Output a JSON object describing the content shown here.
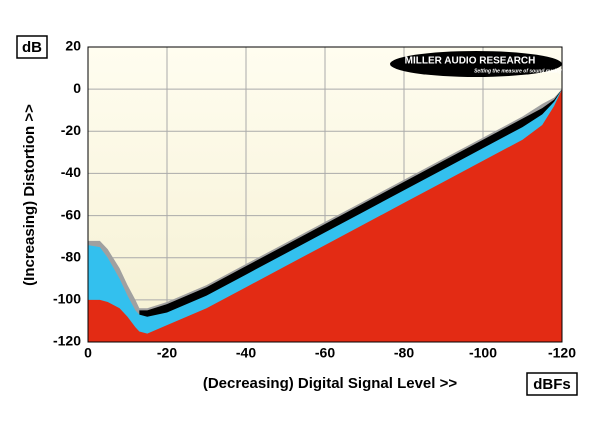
{
  "chart_data": {
    "type": "area",
    "y_unit": "dB",
    "x_unit": "dBFs",
    "y_axis_label": "(Increasing) Distortion >>",
    "x_axis_label": "(Decreasing) Digital Signal Level >>",
    "logo": "MILLER AUDIO RESEARCH",
    "logo_tagline": "Setting the measure of sound quality",
    "x": [
      0,
      -3,
      -5,
      -8,
      -10,
      -12,
      -13,
      -15,
      -20,
      -30,
      -40,
      -50,
      -60,
      -70,
      -80,
      -90,
      -100,
      -110,
      -115,
      -118,
      -120
    ],
    "series": [
      {
        "color": "#a0a0a0",
        "values": [
          -72,
          -72,
          -76,
          -85,
          -93,
          -100,
          -104,
          -104,
          -101,
          -93,
          -83,
          -73,
          -63,
          -53,
          -43,
          -33,
          -23,
          -13,
          -7,
          -4,
          0
        ]
      },
      {
        "color": "#000000",
        "values": [
          null,
          null,
          null,
          null,
          null,
          null,
          -105,
          -105,
          -102,
          -94,
          -84,
          -74,
          -64,
          -54,
          -44,
          -34,
          -24,
          -14,
          -9,
          -5,
          0
        ]
      },
      {
        "color": "#33c0ee",
        "values": [
          -74,
          -75,
          -80,
          -90,
          -98,
          -105,
          -107,
          -108,
          -106,
          -98,
          -88,
          -78,
          -68,
          -58,
          -48,
          -38,
          -28,
          -18,
          -12,
          -6,
          0
        ]
      },
      {
        "color": "#e32b14",
        "values": [
          -100,
          -100,
          -101,
          -104,
          -108,
          -113,
          -115,
          -116,
          -112,
          -104,
          -94,
          -84,
          -74,
          -64,
          -54,
          -44,
          -34,
          -24,
          -17,
          -8,
          0
        ]
      }
    ],
    "xlim": [
      0,
      -120
    ],
    "xticks": [
      0,
      -20,
      -40,
      -60,
      -80,
      -100,
      -120
    ],
    "ylim": [
      -120,
      20
    ],
    "yticks": [
      20,
      0,
      -20,
      -40,
      -60,
      -80,
      -100,
      -120
    ],
    "grid": true
  }
}
